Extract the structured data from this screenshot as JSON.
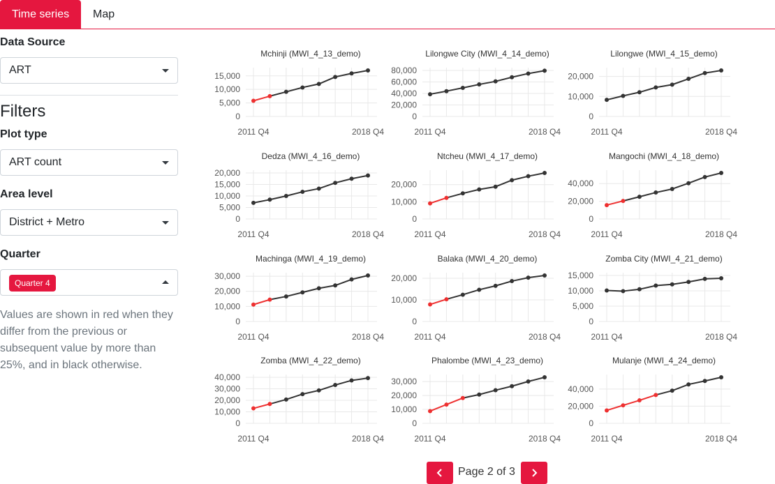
{
  "tabs": [
    {
      "label": "Time series",
      "active": true
    },
    {
      "label": "Map",
      "active": false
    }
  ],
  "sidebar": {
    "data_source_label": "Data Source",
    "data_source_value": "ART",
    "filters_title": "Filters",
    "plot_type_label": "Plot type",
    "plot_type_value": "ART count",
    "area_level_label": "Area level",
    "area_level_value": "District + Metro",
    "quarter_label": "Quarter",
    "quarter_badge": "Quarter 4",
    "note": "Values are shown in red when they differ from the previous or subsequent value by more than 25%, and in black otherwise."
  },
  "pager": {
    "text": "Page 2 of 3"
  },
  "colors": {
    "accent": "#e5173f",
    "line": "#333333",
    "highlight": "#ee3030"
  },
  "chart_data": [
    {
      "type": "line",
      "title": "Mchinji (MWI_4_13_demo)",
      "x": [
        "2011 Q4",
        "2012 Q4",
        "2013 Q4",
        "2014 Q4",
        "2015 Q4",
        "2016 Q4",
        "2017 Q4",
        "2018 Q4"
      ],
      "values": [
        5800,
        7500,
        9100,
        10700,
        12000,
        14600,
        15900,
        17000
      ],
      "red": [
        true,
        true,
        false,
        false,
        false,
        false,
        false,
        false
      ],
      "yticks": [
        0,
        5000,
        10000,
        15000
      ],
      "ylim": [
        0,
        17000
      ],
      "xticks": [
        "2011 Q4",
        "2018 Q4"
      ]
    },
    {
      "type": "line",
      "title": "Lilongwe City (MWI_4_14_demo)",
      "x": [
        "2011 Q4",
        "2012 Q4",
        "2013 Q4",
        "2014 Q4",
        "2015 Q4",
        "2016 Q4",
        "2017 Q4",
        "2018 Q4"
      ],
      "values": [
        38700,
        44000,
        49700,
        55700,
        61000,
        68200,
        74600,
        79500
      ],
      "red": [
        false,
        false,
        false,
        false,
        false,
        false,
        false,
        false
      ],
      "yticks": [
        0,
        20000,
        40000,
        60000,
        80000
      ],
      "ylim": [
        0,
        80000
      ],
      "xticks": [
        "2011 Q4",
        "2018 Q4"
      ]
    },
    {
      "type": "line",
      "title": "Lilongwe (MWI_4_15_demo)",
      "x": [
        "2011 Q4",
        "2012 Q4",
        "2013 Q4",
        "2014 Q4",
        "2015 Q4",
        "2016 Q4",
        "2017 Q4",
        "2018 Q4"
      ],
      "values": [
        8300,
        10300,
        12100,
        14500,
        15900,
        18800,
        21700,
        23000
      ],
      "red": [
        false,
        false,
        false,
        false,
        false,
        false,
        false,
        false
      ],
      "yticks": [
        0,
        10000,
        20000
      ],
      "ylim": [
        0,
        23000
      ],
      "xticks": [
        "2011 Q4",
        "2018 Q4"
      ]
    },
    {
      "type": "line",
      "title": "Dedza (MWI_4_16_demo)",
      "x": [
        "2011 Q4",
        "2012 Q4",
        "2013 Q4",
        "2014 Q4",
        "2015 Q4",
        "2016 Q4",
        "2017 Q4",
        "2018 Q4"
      ],
      "values": [
        7000,
        8400,
        10000,
        11800,
        13200,
        15700,
        17500,
        18900
      ],
      "red": [
        false,
        false,
        false,
        false,
        false,
        false,
        false,
        false
      ],
      "yticks": [
        0,
        5000,
        10000,
        15000,
        20000
      ],
      "ylim": [
        0,
        20000
      ],
      "xticks": [
        "2011 Q4",
        "2018 Q4"
      ]
    },
    {
      "type": "line",
      "title": "Ntcheu (MWI_4_17_demo)",
      "x": [
        "2011 Q4",
        "2012 Q4",
        "2013 Q4",
        "2014 Q4",
        "2015 Q4",
        "2016 Q4",
        "2017 Q4",
        "2018 Q4"
      ],
      "values": [
        9100,
        12300,
        14900,
        17200,
        18800,
        22600,
        24900,
        26800
      ],
      "red": [
        true,
        true,
        false,
        false,
        false,
        false,
        false,
        false
      ],
      "yticks": [
        0,
        10000,
        20000
      ],
      "ylim": [
        0,
        26800
      ],
      "xticks": [
        "2011 Q4",
        "2018 Q4"
      ]
    },
    {
      "type": "line",
      "title": "Mangochi (MWI_4_18_demo)",
      "x": [
        "2011 Q4",
        "2012 Q4",
        "2013 Q4",
        "2014 Q4",
        "2015 Q4",
        "2016 Q4",
        "2017 Q4",
        "2018 Q4"
      ],
      "values": [
        15700,
        20400,
        25100,
        29900,
        33900,
        40400,
        47400,
        52000
      ],
      "red": [
        true,
        true,
        false,
        false,
        false,
        false,
        false,
        false
      ],
      "yticks": [
        0,
        20000,
        40000
      ],
      "ylim": [
        0,
        52000
      ],
      "xticks": [
        "2011 Q4",
        "2018 Q4"
      ]
    },
    {
      "type": "line",
      "title": "Machinga (MWI_4_19_demo)",
      "x": [
        "2011 Q4",
        "2012 Q4",
        "2013 Q4",
        "2014 Q4",
        "2015 Q4",
        "2016 Q4",
        "2017 Q4",
        "2018 Q4"
      ],
      "values": [
        11200,
        14500,
        16600,
        19300,
        22000,
        23900,
        27900,
        30500
      ],
      "red": [
        true,
        true,
        false,
        false,
        false,
        false,
        false,
        false
      ],
      "yticks": [
        0,
        10000,
        20000,
        30000
      ],
      "ylim": [
        0,
        30500
      ],
      "xticks": [
        "2011 Q4",
        "2018 Q4"
      ]
    },
    {
      "type": "line",
      "title": "Balaka (MWI_4_20_demo)",
      "x": [
        "2011 Q4",
        "2012 Q4",
        "2013 Q4",
        "2014 Q4",
        "2015 Q4",
        "2016 Q4",
        "2017 Q4",
        "2018 Q4"
      ],
      "values": [
        7900,
        10300,
        12400,
        14700,
        16500,
        18700,
        20300,
        21300
      ],
      "red": [
        true,
        true,
        false,
        false,
        false,
        false,
        false,
        false
      ],
      "yticks": [
        0,
        10000,
        20000
      ],
      "ylim": [
        0,
        21300
      ],
      "xticks": [
        "2011 Q4",
        "2018 Q4"
      ]
    },
    {
      "type": "line",
      "title": "Zomba City (MWI_4_21_demo)",
      "x": [
        "2011 Q4",
        "2012 Q4",
        "2013 Q4",
        "2014 Q4",
        "2015 Q4",
        "2016 Q4",
        "2017 Q4",
        "2018 Q4"
      ],
      "values": [
        10100,
        9900,
        10500,
        11700,
        12100,
        12900,
        13900,
        14100
      ],
      "red": [
        false,
        false,
        false,
        false,
        false,
        false,
        false,
        false
      ],
      "yticks": [
        0,
        5000,
        10000,
        15000
      ],
      "ylim": [
        0,
        15000
      ],
      "xticks": [
        "2011 Q4",
        "2018 Q4"
      ]
    },
    {
      "type": "line",
      "title": "Zomba (MWI_4_22_demo)",
      "x": [
        "2011 Q4",
        "2012 Q4",
        "2013 Q4",
        "2014 Q4",
        "2015 Q4",
        "2016 Q4",
        "2017 Q4",
        "2018 Q4"
      ],
      "values": [
        13000,
        16800,
        20700,
        25400,
        28600,
        33300,
        37300,
        39300
      ],
      "red": [
        true,
        true,
        false,
        false,
        false,
        false,
        false,
        false
      ],
      "yticks": [
        0,
        10000,
        20000,
        30000,
        40000
      ],
      "ylim": [
        0,
        40000
      ],
      "xticks": [
        "2011 Q4",
        "2018 Q4"
      ]
    },
    {
      "type": "line",
      "title": "Phalombe (MWI_4_23_demo)",
      "x": [
        "2011 Q4",
        "2012 Q4",
        "2013 Q4",
        "2014 Q4",
        "2015 Q4",
        "2016 Q4",
        "2017 Q4",
        "2018 Q4"
      ],
      "values": [
        8800,
        13500,
        18200,
        20700,
        23800,
        26700,
        30100,
        33100
      ],
      "red": [
        true,
        true,
        true,
        false,
        false,
        false,
        false,
        false
      ],
      "yticks": [
        0,
        10000,
        20000,
        30000
      ],
      "ylim": [
        0,
        33100
      ],
      "xticks": [
        "2011 Q4",
        "2018 Q4"
      ]
    },
    {
      "type": "line",
      "title": "Mulanje (MWI_4_24_demo)",
      "x": [
        "2011 Q4",
        "2012 Q4",
        "2013 Q4",
        "2014 Q4",
        "2015 Q4",
        "2016 Q4",
        "2017 Q4",
        "2018 Q4"
      ],
      "values": [
        15100,
        21000,
        26800,
        33100,
        38100,
        45400,
        49400,
        53700
      ],
      "red": [
        true,
        true,
        true,
        true,
        false,
        false,
        false,
        false
      ],
      "yticks": [
        0,
        20000,
        40000
      ],
      "ylim": [
        0,
        53700
      ],
      "xticks": [
        "2011 Q4",
        "2018 Q4"
      ]
    }
  ]
}
